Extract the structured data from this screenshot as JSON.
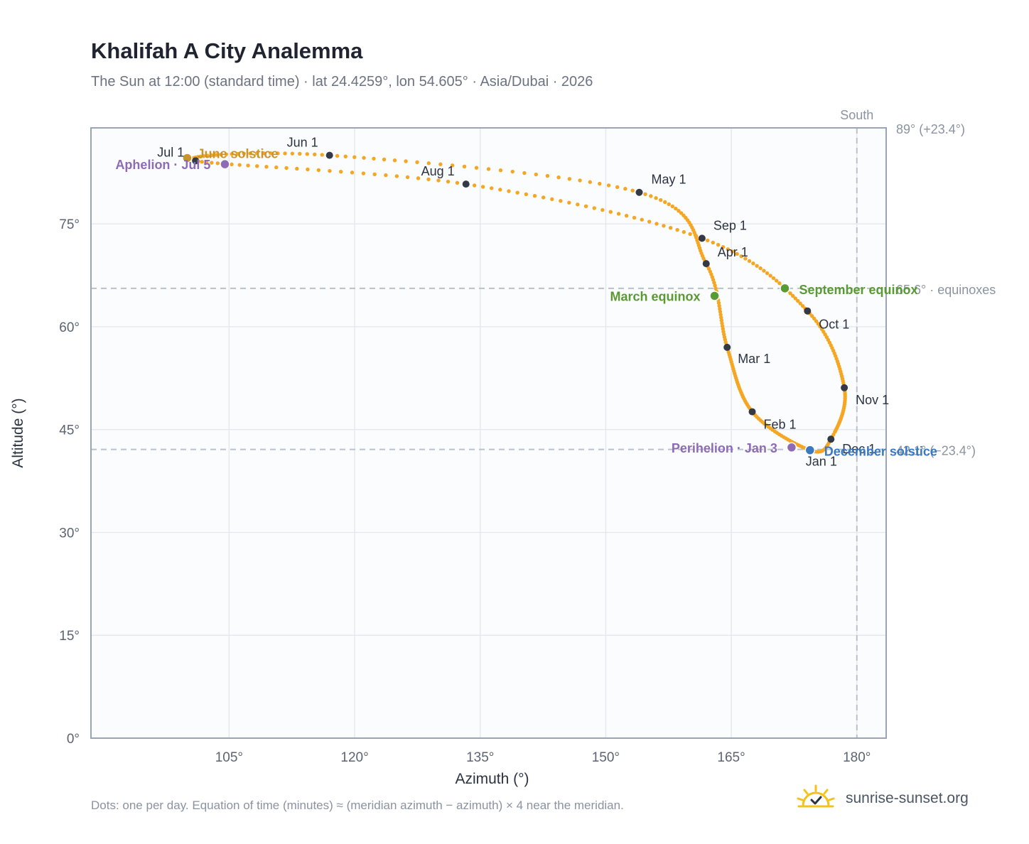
{
  "title": "Khalifah A City Analemma",
  "subtitle": "The Sun at 12:00 (standard time) · lat 24.4259°, lon 54.605° · Asia/Dubai · 2026",
  "footnote": "Dots: one per day. Equation of time (minutes) ≈ (meridian azimuth − azimuth) × 4 near the meridian.",
  "brand": {
    "text": "sunrise-sunset.org",
    "icon": "sun-logo-icon"
  },
  "colors": {
    "curve": "#f5a623",
    "month_marker": "#333a45",
    "equinox": "#5a9a32",
    "june_solstice": "#c9952a",
    "december_solstice": "#3a78c2",
    "apsis": "#8e6cb5",
    "grid": "#e5e9ef",
    "plot_bg": "#fbfcfe",
    "axis": "#9aa4b2",
    "ref_line": "#b8c2cd"
  },
  "chart_data": {
    "type": "scatter",
    "title": "Khalifah A City Analemma",
    "xlabel": "Azimuth (°)",
    "ylabel": "Altitude (°)",
    "xlim": [
      88.5,
      183.5
    ],
    "ylim": [
      0,
      89
    ],
    "xticks": [
      105,
      120,
      135,
      150,
      165,
      180
    ],
    "xtick_labels": [
      "105°",
      "120°",
      "135°",
      "150°",
      "165°",
      "180°"
    ],
    "yticks": [
      0,
      15,
      30,
      45,
      60,
      75
    ],
    "ytick_labels": [
      "0°",
      "15°",
      "30°",
      "45°",
      "60°",
      "75°"
    ],
    "grid": true,
    "meridian": {
      "azimuth": 180,
      "label": "South"
    },
    "reference_lines": [
      {
        "altitude": 89.0,
        "label": "89° (+23.4°)"
      },
      {
        "altitude": 65.6,
        "label": "65.6° · equinoxes"
      },
      {
        "altitude": 42.1,
        "label": "42.1° (−23.4°)"
      }
    ],
    "month_markers": [
      {
        "label": "Jan 1",
        "azimuth": 174.4,
        "altitude": 42.0
      },
      {
        "label": "Feb 1",
        "azimuth": 167.5,
        "altitude": 47.6
      },
      {
        "label": "Mar 1",
        "azimuth": 164.5,
        "altitude": 57.0
      },
      {
        "label": "Apr 1",
        "azimuth": 162.0,
        "altitude": 69.2
      },
      {
        "label": "May 1",
        "azimuth": 154.0,
        "altitude": 79.6
      },
      {
        "label": "Jun 1",
        "azimuth": 117.0,
        "altitude": 85.0
      },
      {
        "label": "Jul 1",
        "azimuth": 101.0,
        "altitude": 84.2
      },
      {
        "label": "Aug 1",
        "azimuth": 133.3,
        "altitude": 80.8
      },
      {
        "label": "Sep 1",
        "azimuth": 161.5,
        "altitude": 72.9
      },
      {
        "label": "Oct 1",
        "azimuth": 174.1,
        "altitude": 62.3
      },
      {
        "label": "Nov 1",
        "azimuth": 178.5,
        "altitude": 51.1
      },
      {
        "label": "Dec 1",
        "azimuth": 176.9,
        "altitude": 43.6
      }
    ],
    "events": [
      {
        "label": "March equinox",
        "azimuth": 163.0,
        "altitude": 64.5,
        "color": "#5a9a32"
      },
      {
        "label": "September equinox",
        "azimuth": 171.4,
        "altitude": 65.6,
        "color": "#5a9a32"
      },
      {
        "label": "June solstice",
        "azimuth": 100.0,
        "altitude": 84.6,
        "color": "#c9952a"
      },
      {
        "label": "December solstice",
        "azimuth": 174.4,
        "altitude": 42.0,
        "color": "#3a78c2"
      },
      {
        "label": "Perihelion · Jan 3",
        "azimuth": 172.2,
        "altitude": 42.4,
        "color": "#8e6cb5"
      },
      {
        "label": "Aphelion · Jul 5",
        "azimuth": 104.5,
        "altitude": 83.7,
        "color": "#8e6cb5"
      }
    ]
  }
}
